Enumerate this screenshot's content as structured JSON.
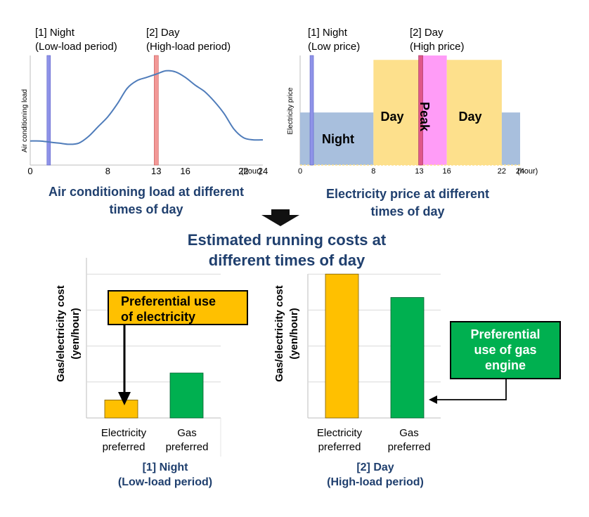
{
  "colors": {
    "title_blue": "#1f3f6e",
    "night_marker": "#8f93e8",
    "day_marker": "#f29896",
    "peak_marker": "#e0578a",
    "night_band": "#a8bfdd",
    "day_band": "#fde08c",
    "peak_band": "#ff9cf7",
    "curve": "#4f7cba",
    "electricity_bar": "#ffc000",
    "gas_bar": "#00b050"
  },
  "load_chart": {
    "marker_night": [
      "[1] Night",
      "(Low-load period)"
    ],
    "marker_day": [
      "[2] Day",
      "(High-load period)"
    ],
    "ylabel": "Air conditioning load",
    "ticks": [
      "0",
      "8",
      "13",
      "16",
      "22",
      "24"
    ],
    "unit": "(hour)",
    "title": [
      "Air conditioning load at different",
      "times of day"
    ]
  },
  "price_chart": {
    "marker_night": [
      "[1] Night",
      "(Low price)"
    ],
    "marker_day": [
      "[2] Day",
      "(High price)"
    ],
    "ylabel": "Electricity price",
    "band_labels": {
      "night": "Night",
      "day1": "Day",
      "peak": "Peak",
      "day2": "Day"
    },
    "ticks": [
      "0",
      "8",
      "13",
      "16",
      "22",
      "24"
    ],
    "unit": "(hour)",
    "title": [
      "Electricity price at different",
      "times of day"
    ]
  },
  "summary_title": [
    "Estimated  running costs at",
    "different times of day"
  ],
  "cost_night": {
    "ylabel": [
      "Gas/electricity cost",
      "(yen/hour)"
    ],
    "callout": [
      "Preferential use",
      "of electricity"
    ],
    "categories": [
      [
        "Electricity",
        "preferred"
      ],
      [
        "Gas",
        "preferred"
      ]
    ],
    "caption": [
      "[1] Night",
      "(Low-load period)"
    ]
  },
  "cost_day": {
    "ylabel": [
      "Gas/electricity cost",
      "(yen/hour)"
    ],
    "callout": [
      "Preferential",
      "use of gas",
      "engine"
    ],
    "categories": [
      [
        "Electricity",
        "preferred"
      ],
      [
        "Gas",
        "preferred"
      ]
    ],
    "caption": [
      "[2] Day",
      "(High-load period)"
    ]
  },
  "chart_data": [
    {
      "type": "line",
      "title": "Air conditioning load at different times of day",
      "ylabel": "Air conditioning load",
      "x": [
        0,
        1,
        2,
        3,
        4,
        5,
        6,
        7,
        8,
        9,
        10,
        11,
        12,
        13,
        14,
        15,
        16,
        17,
        18,
        19,
        20,
        21,
        22,
        23,
        24
      ],
      "values": [
        0.22,
        0.22,
        0.21,
        0.2,
        0.19,
        0.2,
        0.26,
        0.35,
        0.44,
        0.56,
        0.7,
        0.77,
        0.8,
        0.83,
        0.86,
        0.85,
        0.8,
        0.73,
        0.67,
        0.58,
        0.47,
        0.33,
        0.25,
        0.23,
        0.23
      ],
      "xlim": [
        0,
        24
      ],
      "ylim": [
        0,
        1
      ],
      "xticks": [
        0,
        8,
        13,
        16,
        22,
        24
      ],
      "markers": [
        {
          "label": "[1] Night",
          "x": 1
        },
        {
          "label": "[2] Day",
          "x": 13
        }
      ]
    },
    {
      "type": "area",
      "title": "Electricity price at different times of day",
      "ylabel": "Electricity price",
      "bands": [
        {
          "label": "Night",
          "from": 0,
          "to": 8,
          "level": 0.48
        },
        {
          "label": "Day",
          "from": 8,
          "to": 13,
          "level": 0.96
        },
        {
          "label": "Peak",
          "from": 13,
          "to": 16,
          "level": 1.0
        },
        {
          "label": "Day",
          "from": 16,
          "to": 22,
          "level": 0.96
        },
        {
          "label": "Night",
          "from": 22,
          "to": 24,
          "level": 0.48
        }
      ],
      "xlim": [
        0,
        24
      ],
      "ylim": [
        0,
        1
      ],
      "xticks": [
        0,
        8,
        13,
        16,
        22,
        24
      ],
      "markers": [
        {
          "label": "[1] Night",
          "x": 1
        },
        {
          "label": "[2] Day",
          "x": 13
        }
      ]
    },
    {
      "type": "bar",
      "title": "[1] Night (Low-load period)",
      "ylabel": "Gas/electricity cost (yen/hour)",
      "categories": [
        "Electricity preferred",
        "Gas preferred"
      ],
      "values": [
        0.5,
        1.25
      ],
      "ylim": [
        0,
        4.2
      ],
      "grid": true
    },
    {
      "type": "bar",
      "title": "[2] Day (High-load period)",
      "ylabel": "Gas/electricity cost (yen/hour)",
      "categories": [
        "Electricity preferred",
        "Gas preferred"
      ],
      "values": [
        4.0,
        3.35
      ],
      "ylim": [
        0,
        4.2
      ],
      "grid": true
    }
  ]
}
